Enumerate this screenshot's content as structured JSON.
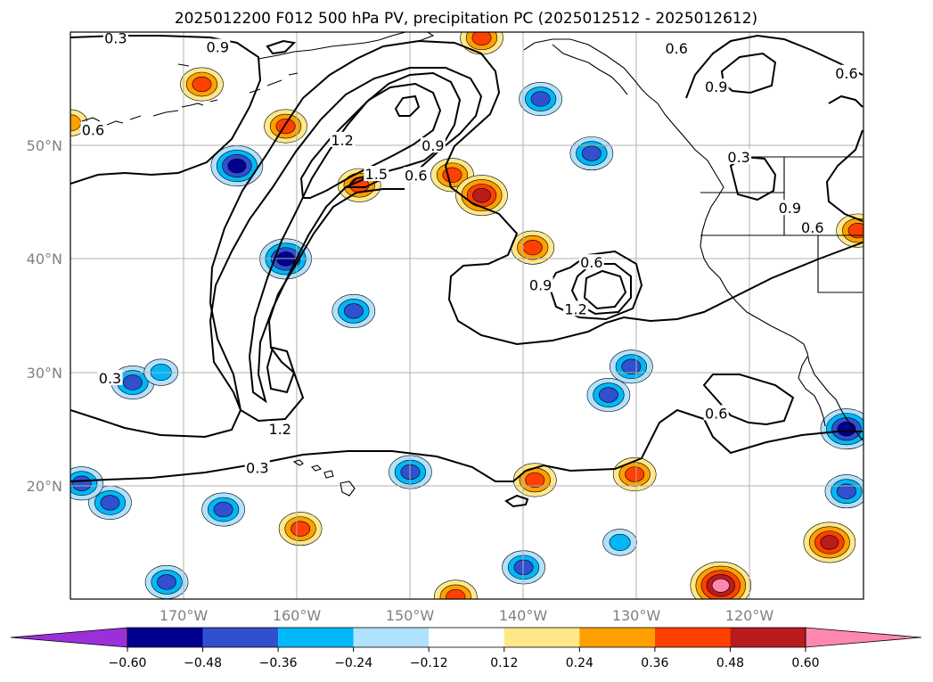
{
  "title": "2025012200 F012 500 hPa PV, precipitation PC (2025012512 - 2025012612)",
  "map": {
    "lon_labels": [
      "170°W",
      "160°W",
      "150°W",
      "140°W",
      "130°W",
      "120°W"
    ],
    "lat_labels": [
      "50°N",
      "40°N",
      "30°N",
      "20°N"
    ],
    "lon_range": [
      -180,
      -110
    ],
    "lat_range": [
      10,
      60
    ],
    "pv_contour_levels": [
      0.3,
      0.6,
      0.9,
      1.2,
      1.5
    ],
    "pv_labels": [
      {
        "text": "0.3",
        "lon": -176,
        "lat": 59.5
      },
      {
        "text": "0.9",
        "lon": -167,
        "lat": 58.7
      },
      {
        "text": "0.6",
        "lon": -178,
        "lat": 51.4
      },
      {
        "text": "1.2",
        "lon": -156,
        "lat": 50.5
      },
      {
        "text": "1.5",
        "lon": -153,
        "lat": 47.5
      },
      {
        "text": "0.6",
        "lon": -149.5,
        "lat": 47.4
      },
      {
        "text": "0.9",
        "lon": -148,
        "lat": 50.0
      },
      {
        "text": "0.6",
        "lon": -126.5,
        "lat": 58.6
      },
      {
        "text": "0.9",
        "lon": -123,
        "lat": 55.2
      },
      {
        "text": "0.3",
        "lon": -121,
        "lat": 49.0
      },
      {
        "text": "0.9",
        "lon": -116.5,
        "lat": 44.5
      },
      {
        "text": "0.6",
        "lon": -114.5,
        "lat": 42.8
      },
      {
        "text": "0.6",
        "lon": -111.5,
        "lat": 56.4
      },
      {
        "text": "0.6",
        "lon": -134,
        "lat": 39.7
      },
      {
        "text": "0.9",
        "lon": -138.5,
        "lat": 37.7
      },
      {
        "text": "1.2",
        "lon": -135.4,
        "lat": 35.6
      },
      {
        "text": "0.3",
        "lon": -176.5,
        "lat": 29.5
      },
      {
        "text": "1.2",
        "lon": -161.5,
        "lat": 25.0
      },
      {
        "text": "0.3",
        "lon": -163.5,
        "lat": 21.6
      },
      {
        "text": "0.6",
        "lon": -123,
        "lat": 26.4
      }
    ],
    "precip_cells": [
      {
        "value": -0.5,
        "lon": -165.3,
        "lat": 48.2
      },
      {
        "value": -0.5,
        "lon": -161,
        "lat": 40.0
      },
      {
        "value": -0.36,
        "lon": -155,
        "lat": 35.4
      },
      {
        "value": -0.36,
        "lon": -134,
        "lat": 49.3
      },
      {
        "value": -0.36,
        "lon": -130.5,
        "lat": 30.5
      },
      {
        "value": -0.36,
        "lon": -132.5,
        "lat": 28.0
      },
      {
        "value": -0.36,
        "lon": -138.5,
        "lat": 54.1
      },
      {
        "value": -0.36,
        "lon": -174.5,
        "lat": 29.1
      },
      {
        "value": -0.36,
        "lon": -176.5,
        "lat": 18.5
      },
      {
        "value": -0.36,
        "lon": -179,
        "lat": 20.2
      },
      {
        "value": -0.36,
        "lon": -166.5,
        "lat": 17.9
      },
      {
        "value": -0.36,
        "lon": -171.5,
        "lat": 11.5
      },
      {
        "value": -0.36,
        "lon": -140.0,
        "lat": 12.8
      },
      {
        "value": -0.36,
        "lon": -150,
        "lat": 21.2
      },
      {
        "value": -0.24,
        "lon": -131.5,
        "lat": 15.0
      },
      {
        "value": -0.24,
        "lon": -172,
        "lat": 30.0
      },
      {
        "value": -0.5,
        "lon": -111.5,
        "lat": 25.0
      },
      {
        "value": -0.36,
        "lon": -111.5,
        "lat": 19.5
      },
      {
        "value": 0.42,
        "lon": -146.3,
        "lat": 47.4
      },
      {
        "value": 0.5,
        "lon": -143.7,
        "lat": 45.6
      },
      {
        "value": 0.42,
        "lon": -130.2,
        "lat": 21.0
      },
      {
        "value": 0.36,
        "lon": -139.0,
        "lat": 20.5
      },
      {
        "value": 0.5,
        "lon": -113.0,
        "lat": 15.0
      },
      {
        "value": 0.6,
        "lon": -122.6,
        "lat": 11.2
      },
      {
        "value": 0.36,
        "lon": -159.7,
        "lat": 16.2
      },
      {
        "value": 0.36,
        "lon": -143.7,
        "lat": 59.5
      },
      {
        "value": 0.36,
        "lon": -161.0,
        "lat": 51.7
      },
      {
        "value": 0.36,
        "lon": -168.4,
        "lat": 55.4
      },
      {
        "value": 0.36,
        "lon": -154.5,
        "lat": 46.5
      },
      {
        "value": 0.36,
        "lon": -139.2,
        "lat": 41.0
      },
      {
        "value": 0.36,
        "lon": -110.5,
        "lat": 42.5
      },
      {
        "value": 0.36,
        "lon": -146.0,
        "lat": 10.2
      },
      {
        "value": 0.24,
        "lon": -180.0,
        "lat": 52.0
      }
    ]
  },
  "colorbar": {
    "ticks": [
      "−0.60",
      "−0.48",
      "−0.36",
      "−0.24",
      "−0.12",
      "0.12",
      "0.24",
      "0.36",
      "0.48",
      "0.60"
    ],
    "colors": {
      "under": "#9b30d9",
      "bins": [
        "#000090",
        "#3050d0",
        "#00b8f8",
        "#b0e2ff",
        "#ffffff",
        "#ffe88a",
        "#ffa000",
        "#ff4000",
        "#b81c1c"
      ],
      "over": "#ff88b0"
    }
  }
}
